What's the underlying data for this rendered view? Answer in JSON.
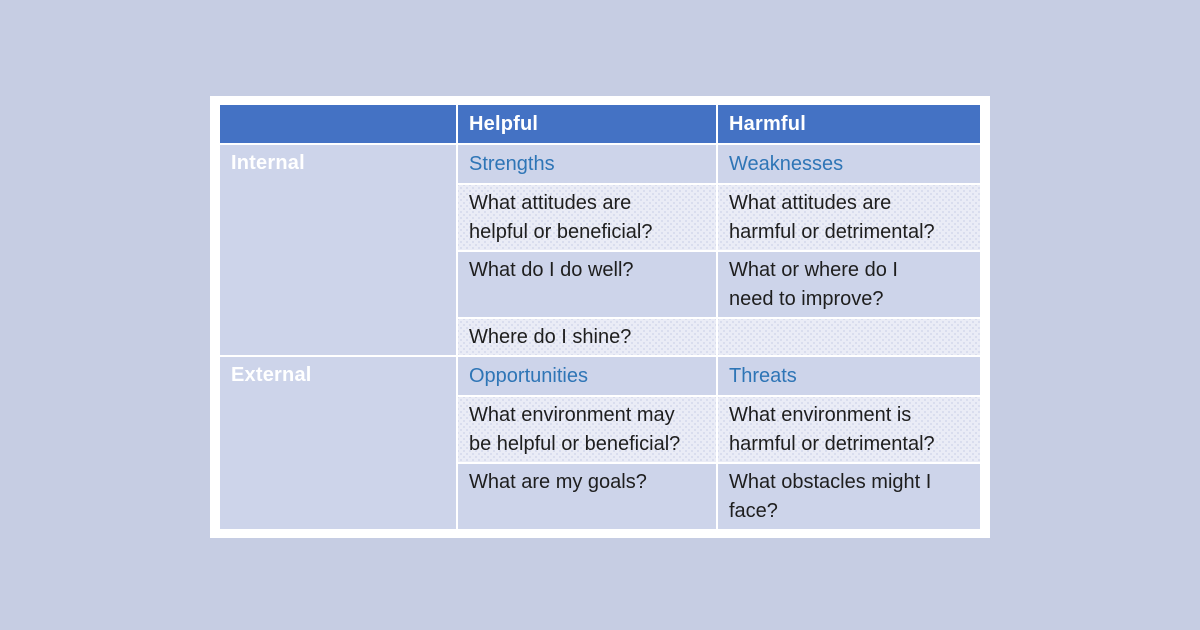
{
  "page": {
    "background_color": "#C6CDE3",
    "frame_color": "#FFFFFF"
  },
  "table": {
    "title_semantic": "SWOT analysis matrix",
    "colors": {
      "header_background": "#4472C4",
      "header_text": "#FFFFFF",
      "band_solid": "#CDD4EA",
      "band_dotted": "#EAECF6",
      "category_text": "#2E75B6",
      "row_label_text": "#FFFFFF",
      "question_text": "#1E1E1E",
      "gridline": "#FFFFFF"
    },
    "header": {
      "cells": [
        "",
        "Helpful",
        "Harmful"
      ]
    },
    "sections": [
      {
        "label": "Internal",
        "rows": [
          {
            "type": "category",
            "helpful": "Strengths",
            "harmful": "Weaknesses"
          },
          {
            "type": "question",
            "helpful": "What attitudes are\nhelpful or beneficial?",
            "harmful": "What attitudes are\nharmful or detrimental?"
          },
          {
            "type": "question",
            "helpful": "What do I do well?",
            "harmful": "What or where do I\nneed to improve?"
          },
          {
            "type": "question",
            "helpful": "Where do I shine?",
            "harmful": ""
          }
        ]
      },
      {
        "label": "External",
        "rows": [
          {
            "type": "category",
            "helpful": "Opportunities",
            "harmful": "Threats"
          },
          {
            "type": "question",
            "helpful": "What environment may\nbe helpful or beneficial?",
            "harmful": "What environment is\nharmful or detrimental?"
          },
          {
            "type": "question",
            "helpful": "What are my goals?",
            "harmful": "What obstacles might I\nface?"
          }
        ]
      }
    ]
  }
}
